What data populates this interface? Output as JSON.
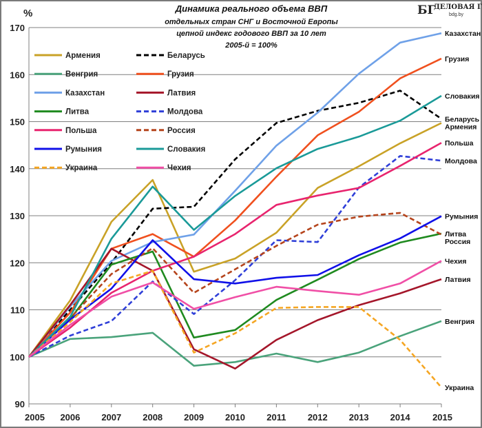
{
  "logo": {
    "mark": "БГ",
    "name": "ДЕЛОВАЯ ГАЗЕТА",
    "url": "bdg.by"
  },
  "chart_data": {
    "type": "line",
    "title": "Динамика реального объема ВВП",
    "subtitle_lines": [
      "отдельных стран СНГ и Восточной Европы",
      "цепной индекс годового ВВП за 10 лет",
      "2005-й = 100%"
    ],
    "ylabel": "%",
    "xlabel": "",
    "x": [
      2005,
      2006,
      2007,
      2008,
      2009,
      2010,
      2011,
      2012,
      2013,
      2014,
      2015
    ],
    "x_tick_labels": [
      "2005",
      "2006",
      "2007",
      "2008",
      "2009",
      "2010",
      "2011",
      "2012",
      "2013",
      "2014",
      "2015"
    ],
    "ylim": [
      90,
      170
    ],
    "y_ticks": [
      90,
      100,
      110,
      120,
      130,
      140,
      150,
      160,
      170
    ],
    "y_tick_labels": [
      "90",
      "100",
      "110",
      "120",
      "130",
      "140",
      "150",
      "160",
      "170"
    ],
    "grid": true,
    "legend_placement": "top-left",
    "series": [
      {
        "name": "Армения",
        "end_label": "Армения",
        "color": "#c9a227",
        "dash": "solid",
        "values": [
          100,
          112,
          128.7,
          137.6,
          118.1,
          120.9,
          126.4,
          135.9,
          140.5,
          145.4,
          149.7
        ]
      },
      {
        "name": "Беларусь",
        "end_label": "Беларусь",
        "color": "#000000",
        "dash": "dashed",
        "values": [
          100,
          110,
          120,
          131.5,
          131.9,
          142,
          149.7,
          152.3,
          154,
          156.6,
          150.6
        ]
      },
      {
        "name": "Венгрия",
        "end_label": "Венгрия",
        "color": "#4aa37b",
        "dash": "solid",
        "values": [
          100,
          103.8,
          104.2,
          105.1,
          98.1,
          98.9,
          100.7,
          98.9,
          100.9,
          104.4,
          107.6
        ]
      },
      {
        "name": "Грузия",
        "end_label": "Грузия",
        "color": "#f0501e",
        "dash": "solid",
        "values": [
          100,
          109.4,
          123,
          126.1,
          121.3,
          129,
          138.3,
          147.1,
          152.1,
          159.2,
          163.4
        ]
      },
      {
        "name": "Казахстан",
        "end_label": "Казахстан",
        "color": "#6fa1e8",
        "dash": "solid",
        "values": [
          100,
          110.7,
          120.4,
          124.4,
          126,
          135.3,
          144.9,
          151.9,
          160.2,
          166.8,
          168.8
        ]
      },
      {
        "name": "Латвия",
        "end_label": "Латвия",
        "color": "#a4162a",
        "dash": "solid",
        "values": [
          100,
          111,
          123,
          118.3,
          101.6,
          97.5,
          103.6,
          107.8,
          111,
          113.5,
          116.5
        ]
      },
      {
        "name": "Литва",
        "end_label": "Литва",
        "color": "#1f8a1f",
        "dash": "solid",
        "values": [
          100,
          108,
          119.6,
          122.4,
          104.1,
          105.7,
          112.1,
          116.4,
          120.8,
          124.3,
          126.2
        ]
      },
      {
        "name": "Молдова",
        "end_label": "Молдова",
        "color": "#2f3fd8",
        "dash": "dashed",
        "values": [
          100,
          104.5,
          107.6,
          116,
          109.1,
          116.3,
          124.8,
          124.4,
          136,
          142.7,
          141.7
        ]
      },
      {
        "name": "Польша",
        "end_label": "Польша",
        "color": "#e8246e",
        "dash": "solid",
        "values": [
          100,
          106.2,
          113.6,
          118.3,
          121.3,
          126.1,
          132.3,
          134.3,
          135.9,
          140.6,
          145.5
        ]
      },
      {
        "name": "Россия",
        "end_label": "Россия",
        "color": "#b5441c",
        "dash": "dashed",
        "values": [
          100,
          108.2,
          117.6,
          123.1,
          113.6,
          118.6,
          123.6,
          128.1,
          129.8,
          130.6,
          126
        ]
      },
      {
        "name": "Румыния",
        "end_label": "Румыния",
        "color": "#1010e8",
        "dash": "solid",
        "values": [
          100,
          107.9,
          114.5,
          124.8,
          116.5,
          115.6,
          116.8,
          117.4,
          121.6,
          125.2,
          129.9
        ]
      },
      {
        "name": "Словакия",
        "end_label": "Словакия",
        "color": "#1a9a98",
        "dash": "solid",
        "values": [
          100,
          108.5,
          125.1,
          136.2,
          127,
          134.2,
          140.1,
          144.2,
          146.8,
          150.2,
          155.5
        ]
      },
      {
        "name": "Украина",
        "end_label": "Украина",
        "color": "#f5a623",
        "dash": "dashed",
        "values": [
          100,
          107.4,
          115.6,
          118.3,
          100.9,
          105,
          110.4,
          110.6,
          110.6,
          103.6,
          93.5
        ]
      },
      {
        "name": "Чехия",
        "end_label": "Чехия",
        "color": "#f04fa6",
        "dash": "solid",
        "values": [
          100,
          106.8,
          112.8,
          115.8,
          110.2,
          112.7,
          114.9,
          114,
          113.2,
          115.6,
          120.4
        ]
      }
    ]
  }
}
